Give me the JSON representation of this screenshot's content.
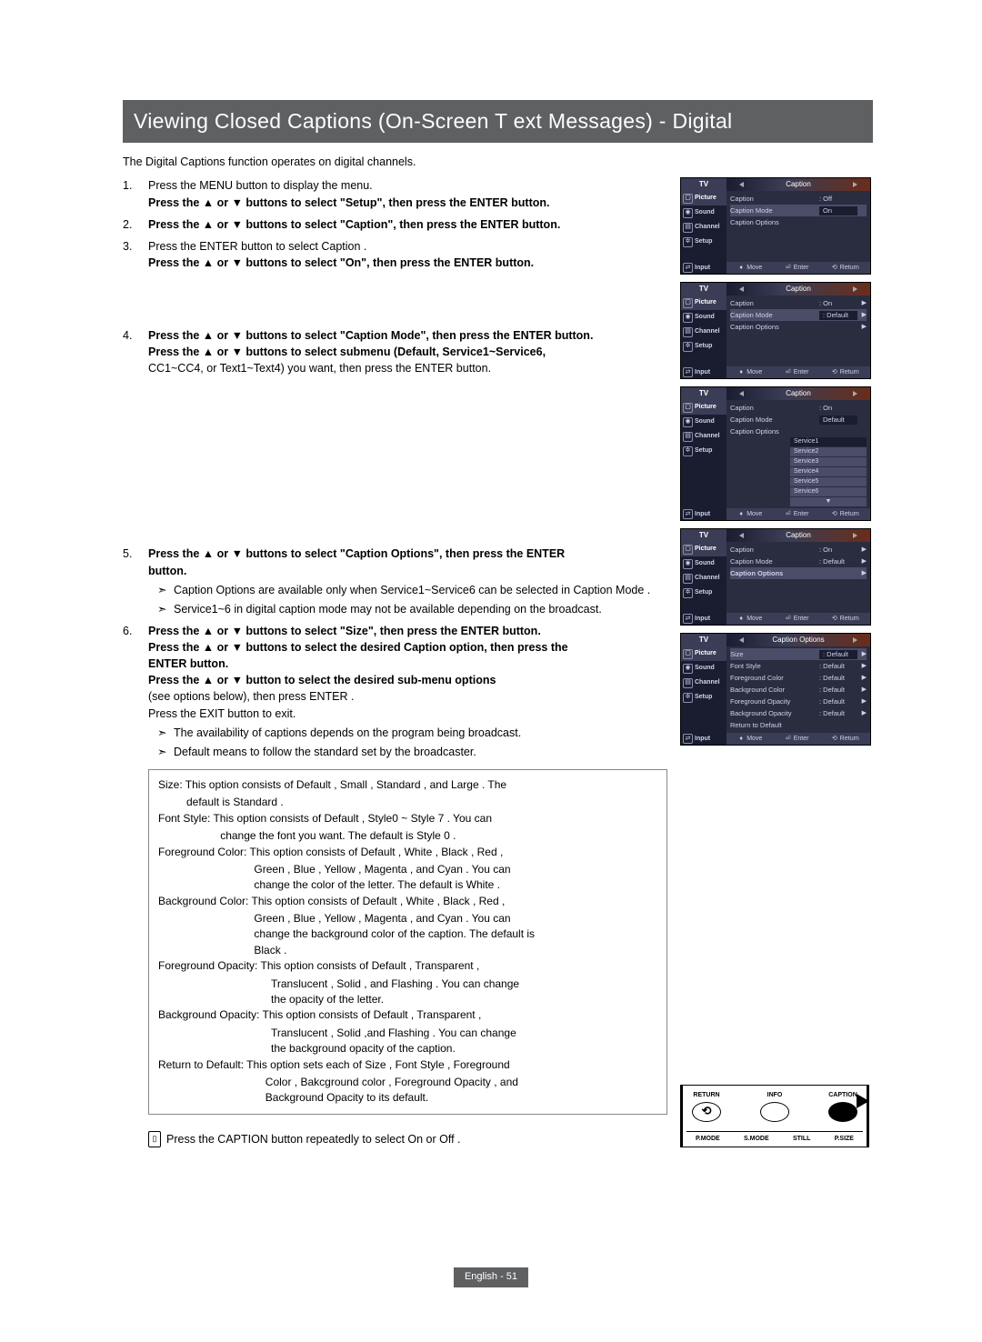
{
  "title": "Viewing Closed Captions (On-Screen T   ext Messages) - Digital",
  "intro": "The Digital Captions function operates on digital channels.",
  "steps": [
    {
      "n": "1.",
      "lines": [
        {
          "t": "Press the MENU button to display the menu."
        },
        {
          "t": "Press the ▲ or ▼ buttons to select \"Setup\", then press the ENTER button.",
          "b": true
        }
      ]
    },
    {
      "n": "2.",
      "lines": [
        {
          "t": "Press the ▲ or ▼ buttons to select \"Caption\", then press the ENTER button.",
          "b": true
        }
      ]
    },
    {
      "n": "3.",
      "lines": [
        {
          "t": "Press the ENTER button to select  Caption ."
        },
        {
          "t": "Press the ▲ or ▼ buttons to select \"On\", then press the ENTER button.",
          "b": true
        }
      ],
      "gap_after": true
    },
    {
      "n": "4.",
      "lines": [
        {
          "t": "Press the ▲ or ▼ buttons to select \"Caption Mode\", then press the ENTER button.",
          "b": true
        },
        {
          "t": "Press the ▲ or ▼ buttons to select submenu (Default, Service1~Service6,",
          "b": true
        },
        {
          "t": "CC1~CC4, or Text1~Text4) you want, then press the ENTER button."
        }
      ],
      "gap2_after": true
    },
    {
      "n": "5.",
      "lines": [
        {
          "t": "Press the ▲ or ▼ buttons to select \"Caption Options\", then press the ENTER",
          "b": true
        },
        {
          "t": "button.",
          "b": true
        }
      ],
      "notes": [
        "Caption Options  are available only when  Service1~Service6  can be selected in  Caption Mode .",
        "Service1~6 in digital caption mode may not be available depending on the broadcast."
      ]
    },
    {
      "n": "6.",
      "lines": [
        {
          "t": "Press the ▲ or ▼ buttons to select \"Size\", then press the ENTER button.",
          "b": true
        },
        {
          "t": "Press the ▲ or ▼ buttons to select the desired Caption option, then press the",
          "b": true
        },
        {
          "t": "ENTER button.",
          "b": true
        },
        {
          "t": "Press the ▲ or ▼ button to select the desired sub-menu options",
          "b": true
        },
        {
          "t": "(see options below), then press ENTER ."
        },
        {
          "t": " "
        },
        {
          "t": "Press the EXIT button to exit."
        }
      ],
      "notes": [
        "The availability of captions depends on the program being broadcast.",
        " Default  means to follow the standard set by the broadcaster."
      ]
    }
  ],
  "options": [
    {
      "label": "Size:",
      "text": "  This option consists of  Default ,  Small ,  Standard , and  Large . The",
      "cont": [
        "default is  Standard ."
      ]
    },
    {
      "label": "Font Style:",
      "text": "  This option consists of  Default ,  Style0  ~  Style 7 . You can",
      "cont": [
        "change the font you want. The default is  Style 0 ."
      ]
    },
    {
      "label": "Foreground Color:",
      "text": "   This option consists of  Default ,  White ,  Black ,  Red ,",
      "cont": [
        " Green ,  Blue ,  Yellow ,  Magenta , and  Cyan . You can",
        "change the color of the letter. The default is  White ."
      ]
    },
    {
      "label": "Background Color:",
      "text": "   This option consists of  Default ,  White ,  Black ,  Red ,",
      "cont": [
        " Green ,  Blue ,  Yellow ,  Magenta , and  Cyan . You can",
        "change the background color of the caption. The default is",
        " Black ."
      ]
    },
    {
      "label": "Foreground  Opacity:",
      "text": "  This option consists of  Default ,  Transparent ,",
      "cont": [
        " Translucent ,  Solid , and  Flashing . You can change",
        "the opacity of the letter."
      ]
    },
    {
      "label": "Background  Opacity:",
      "text": "  This option consists of  Default ,  Transparent ,",
      "cont": [
        " Translucent ,  Solid ,and  Flashing . You can change",
        "the background opacity of the caption."
      ]
    },
    {
      "label": "Return to  Default:",
      "text": "  This option sets each of  Size ,  Font Style ,  Foreground",
      "cont": [
        "Color ,  Bakcground color ,  Foreground Opacity , and",
        " Background Opacity  to its default."
      ]
    }
  ],
  "footer_note": "Press the CAPTION button repeatedly to select  On  or  Off .",
  "page_label": "English - 51",
  "tv": {
    "header_left": "TV",
    "sidebar": [
      "Picture",
      "Sound",
      "Channel",
      "Setup",
      "Input"
    ],
    "hints": {
      "move": "Move",
      "enter": "Enter",
      "return": "Return"
    },
    "menus": [
      {
        "title": "Caption",
        "rows": [
          {
            "label": "Caption",
            "val": ": Off",
            "arrow": ""
          },
          {
            "label": "Caption Mode",
            "val": "On",
            "hl": true,
            "box": true
          },
          {
            "label": "Caption Options",
            "val": "",
            "arrow": ""
          }
        ]
      },
      {
        "title": "Caption",
        "rows": [
          {
            "label": "Caption",
            "val": ": On",
            "arrow": "▶"
          },
          {
            "label": "Caption Mode",
            "val": ": Default",
            "hl": true,
            "arrow": "▶"
          },
          {
            "label": "Caption Options",
            "val": "",
            "arrow": "▶"
          }
        ]
      },
      {
        "title": "Caption",
        "rows": [
          {
            "label": "Caption",
            "val": ": On"
          },
          {
            "label": "Caption Mode",
            "val": "Default",
            "box": true
          },
          {
            "label": "Caption Options",
            "val": ""
          }
        ],
        "dropdown": [
          "Service1",
          "Service2",
          "Service3",
          "Service4",
          "Service5",
          "Service6"
        ]
      },
      {
        "title": "Caption",
        "rows": [
          {
            "label": "Caption",
            "val": ": On",
            "arrow": "▶"
          },
          {
            "label": "Caption Mode",
            "val": ": Default",
            "arrow": "▶"
          },
          {
            "label": "Caption Options",
            "val": "",
            "hl": true,
            "arrow": "▶",
            "bold": true
          }
        ]
      },
      {
        "title": "Caption Options",
        "rows": [
          {
            "label": "Size",
            "val": ": Default",
            "hl": true,
            "arrow": "▶"
          },
          {
            "label": "Font Style",
            "val": ": Default",
            "arrow": "▶"
          },
          {
            "label": "Foreground Color",
            "val": ": Default",
            "arrow": "▶"
          },
          {
            "label": "Background Color",
            "val": ": Default",
            "arrow": "▶"
          },
          {
            "label": "Foreground Opacity",
            "val": ": Default",
            "arrow": "▶"
          },
          {
            "label": "Background  Opacity",
            "val": ": Default",
            "arrow": "▶"
          },
          {
            "label": "Return to Default",
            "val": "",
            "arrow": ""
          }
        ]
      }
    ]
  },
  "remote": {
    "top": [
      {
        "label": "RETURN",
        "icon": "⟲"
      },
      {
        "label": "INFO",
        "icon": ""
      },
      {
        "label": "CAPTION",
        "icon": "",
        "cap": true
      }
    ],
    "bottom": [
      "P.MODE",
      "S.MODE",
      "STILL",
      "P.SIZE"
    ]
  },
  "colors": {
    "title_bg": "#5f6062",
    "tv_bg": "#2a2d40",
    "tv_sidebar": "#1a1c30",
    "tv_hl": "#4a4d68"
  }
}
